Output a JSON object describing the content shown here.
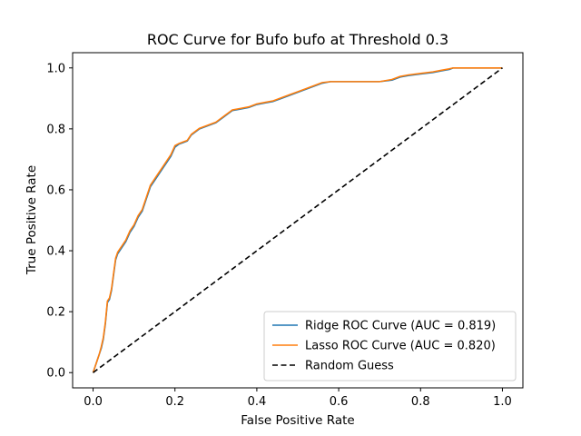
{
  "chart_data": {
    "type": "line",
    "title": "ROC Curve for Bufo bufo at Threshold 0.3",
    "xlabel": "False Positive Rate",
    "ylabel": "True Positive Rate",
    "xlim": [
      -0.05,
      1.05
    ],
    "ylim": [
      -0.05,
      1.05
    ],
    "xticks": [
      "0.0",
      "0.2",
      "0.4",
      "0.6",
      "0.8",
      "1.0"
    ],
    "yticks": [
      "0.0",
      "0.2",
      "0.4",
      "0.6",
      "0.8",
      "1.0"
    ],
    "grid": false,
    "legend_position": "lower-right",
    "series": [
      {
        "name": "Ridge ROC Curve (AUC = 0.819)",
        "color": "#1f77b4",
        "style": "solid",
        "x": [
          0.0,
          0.005,
          0.01,
          0.015,
          0.02,
          0.025,
          0.03,
          0.035,
          0.04,
          0.045,
          0.05,
          0.055,
          0.06,
          0.065,
          0.07,
          0.08,
          0.09,
          0.1,
          0.11,
          0.12,
          0.13,
          0.14,
          0.15,
          0.16,
          0.17,
          0.18,
          0.19,
          0.2,
          0.21,
          0.22,
          0.23,
          0.24,
          0.25,
          0.26,
          0.28,
          0.3,
          0.32,
          0.34,
          0.36,
          0.38,
          0.4,
          0.42,
          0.44,
          0.46,
          0.48,
          0.5,
          0.52,
          0.54,
          0.56,
          0.58,
          0.6,
          0.62,
          0.65,
          0.7,
          0.73,
          0.75,
          0.77,
          0.8,
          0.83,
          0.85,
          0.87,
          0.88,
          0.9,
          0.95,
          1.0
        ],
        "y": [
          0.0,
          0.02,
          0.04,
          0.06,
          0.08,
          0.11,
          0.16,
          0.23,
          0.24,
          0.27,
          0.32,
          0.37,
          0.39,
          0.4,
          0.41,
          0.43,
          0.46,
          0.48,
          0.51,
          0.53,
          0.57,
          0.61,
          0.63,
          0.65,
          0.67,
          0.69,
          0.71,
          0.74,
          0.75,
          0.755,
          0.76,
          0.78,
          0.79,
          0.8,
          0.81,
          0.82,
          0.84,
          0.86,
          0.865,
          0.87,
          0.88,
          0.885,
          0.89,
          0.9,
          0.91,
          0.92,
          0.93,
          0.94,
          0.95,
          0.955,
          0.955,
          0.955,
          0.955,
          0.955,
          0.96,
          0.97,
          0.975,
          0.98,
          0.985,
          0.99,
          0.995,
          1.0,
          1.0,
          1.0,
          1.0
        ]
      },
      {
        "name": "Lasso ROC Curve (AUC = 0.820)",
        "color": "#ff7f0e",
        "style": "solid",
        "x": [
          0.0,
          0.005,
          0.01,
          0.015,
          0.02,
          0.025,
          0.03,
          0.035,
          0.04,
          0.045,
          0.05,
          0.055,
          0.06,
          0.065,
          0.07,
          0.08,
          0.09,
          0.1,
          0.11,
          0.12,
          0.13,
          0.14,
          0.15,
          0.16,
          0.17,
          0.18,
          0.19,
          0.2,
          0.21,
          0.22,
          0.23,
          0.24,
          0.25,
          0.26,
          0.28,
          0.3,
          0.32,
          0.34,
          0.36,
          0.38,
          0.4,
          0.42,
          0.44,
          0.46,
          0.48,
          0.5,
          0.52,
          0.54,
          0.56,
          0.58,
          0.6,
          0.62,
          0.65,
          0.7,
          0.73,
          0.75,
          0.77,
          0.8,
          0.83,
          0.85,
          0.87,
          0.88,
          0.9,
          0.95,
          1.0
        ],
        "y": [
          0.0,
          0.02,
          0.04,
          0.06,
          0.085,
          0.115,
          0.165,
          0.235,
          0.245,
          0.275,
          0.325,
          0.375,
          0.395,
          0.405,
          0.415,
          0.435,
          0.465,
          0.485,
          0.515,
          0.535,
          0.575,
          0.615,
          0.635,
          0.655,
          0.675,
          0.695,
          0.715,
          0.745,
          0.752,
          0.757,
          0.762,
          0.782,
          0.792,
          0.802,
          0.812,
          0.822,
          0.842,
          0.862,
          0.867,
          0.872,
          0.882,
          0.887,
          0.892,
          0.902,
          0.912,
          0.922,
          0.932,
          0.942,
          0.952,
          0.955,
          0.955,
          0.955,
          0.955,
          0.955,
          0.962,
          0.972,
          0.977,
          0.982,
          0.987,
          0.992,
          0.997,
          1.0,
          1.0,
          1.0,
          1.0
        ]
      },
      {
        "name": "Random Guess",
        "color": "#000000",
        "style": "dashed",
        "x": [
          0.0,
          1.0
        ],
        "y": [
          0.0,
          1.0
        ]
      }
    ]
  }
}
